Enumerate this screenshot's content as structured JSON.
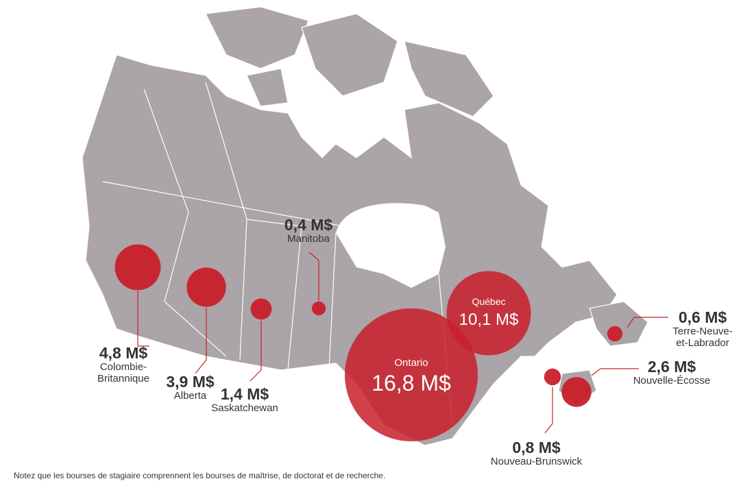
{
  "chart_data": {
    "type": "bubble_map",
    "categories": [
      "Colombie-Britannique",
      "Alberta",
      "Saskatchewan",
      "Manitoba",
      "Ontario",
      "Québec",
      "Nouveau-Brunswick",
      "Nouvelle-Écosse",
      "Terre-Neuve-et-Labrador"
    ],
    "values": [
      4.8,
      3.9,
      1.4,
      0.4,
      16.8,
      10.1,
      0.8,
      2.6,
      0.6
    ],
    "value_labels": [
      "4,8 M$",
      "3,9 M$",
      "1,4 M$",
      "0,4 M$",
      "16,8 M$",
      "10,1 M$",
      "0,8 M$",
      "2,6 M$",
      "0,6 M$"
    ],
    "color": "#c8202a",
    "note": "Notez que les bourses de stagiaire comprennent les bourses de maîtrise, de doctorat et de recherche."
  }
}
